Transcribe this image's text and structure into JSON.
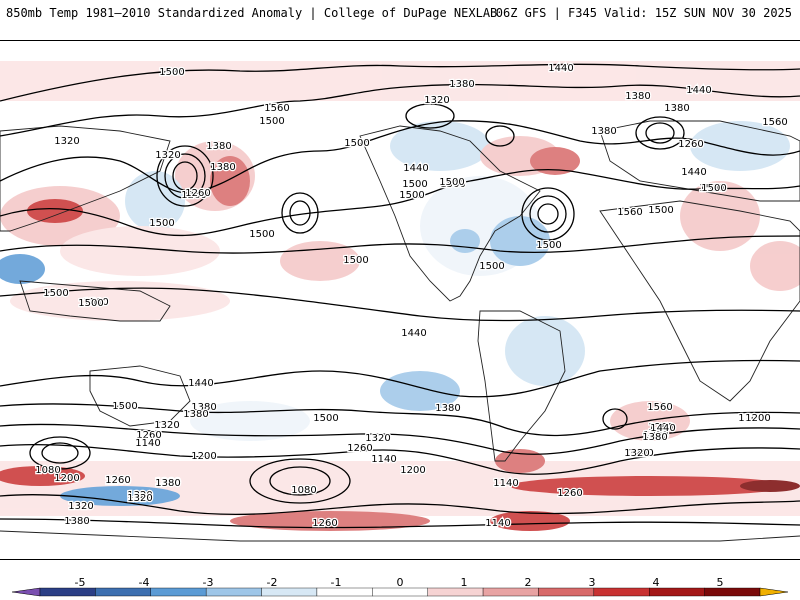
{
  "header": {
    "title_left": "850mb Temp 1981–2010 Standardized Anomaly | College of DuPage NEXLAB",
    "title_right": "06Z GFS | F345 Valid: 15Z SUN NOV 30 2025"
  },
  "map": {
    "contour_labels": [
      "1500",
      "1440",
      "1380",
      "1560",
      "1500",
      "1320",
      "1380",
      "1380",
      "1320",
      "1440",
      "1500",
      "1380",
      "1500",
      "1380",
      "1260",
      "1560",
      "1260",
      "1440",
      "1500",
      "1500",
      "1380",
      "1440",
      "1320",
      "1260",
      "1500",
      "1500",
      "1500",
      "1500",
      "1500",
      "1560",
      "1500",
      "1500",
      "1500",
      "1500",
      "1500",
      "1500",
      "1500",
      "1440",
      "1380",
      "1500",
      "1380",
      "1440",
      "1320",
      "1260",
      "1140",
      "1200",
      "1500",
      "1380",
      "1320",
      "1260",
      "1140",
      "1200",
      "1080",
      "1200",
      "1260",
      "1380",
      "1320",
      "1140",
      "1080",
      "1260",
      "1320",
      "1380",
      "1260",
      "1140",
      "1200",
      "1320",
      "1260",
      "1500",
      "1560",
      "1440",
      "1380",
      "1320",
      "1200",
      "1200",
      "1260",
      "1320",
      "1380"
    ]
  },
  "colorbar": {
    "labels": [
      "-5",
      "-4",
      "-3",
      "-2",
      "-1",
      "0",
      "1",
      "2",
      "3",
      "4",
      "5"
    ],
    "colors": [
      "#7a4fb0",
      "#2b3f86",
      "#3c6fb0",
      "#5b9bd5",
      "#9ec6e8",
      "#d7e8f5",
      "#ffffff",
      "#ffffff",
      "#f6d3d3",
      "#e8a3a3",
      "#d86a6a",
      "#c83232",
      "#a31818",
      "#7a0a0a",
      "#f0b000"
    ]
  }
}
